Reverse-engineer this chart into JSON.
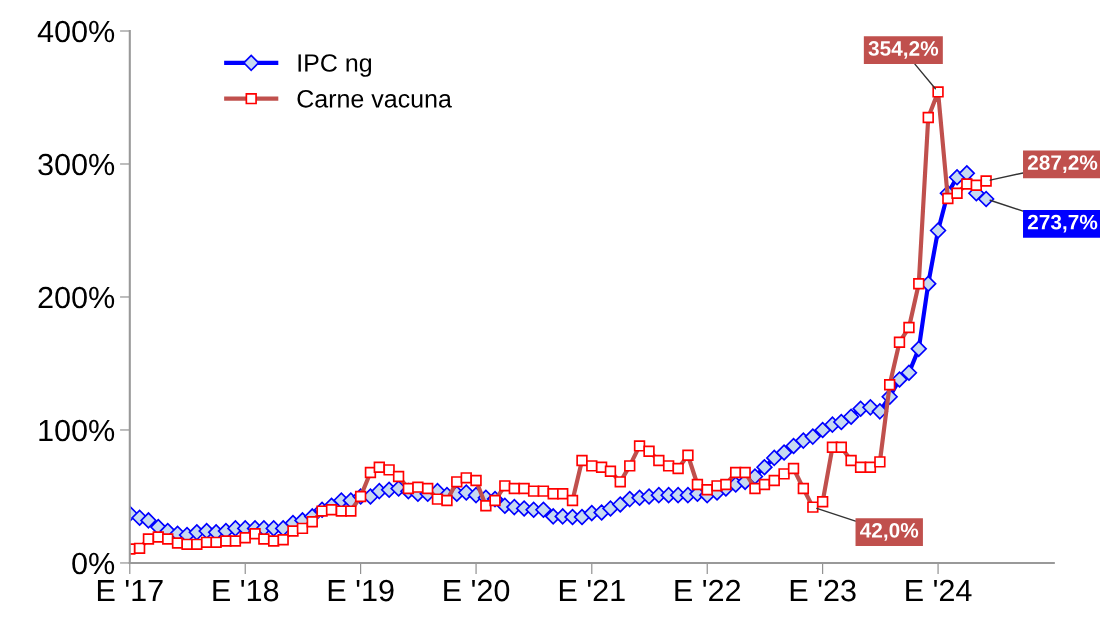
{
  "chart_data": {
    "type": "line",
    "x": [
      "2017-01",
      "2017-02",
      "2017-03",
      "2017-04",
      "2017-05",
      "2017-06",
      "2017-07",
      "2017-08",
      "2017-09",
      "2017-10",
      "2017-11",
      "2017-12",
      "2018-01",
      "2018-02",
      "2018-03",
      "2018-04",
      "2018-05",
      "2018-06",
      "2018-07",
      "2018-08",
      "2018-09",
      "2018-10",
      "2018-11",
      "2018-12",
      "2019-01",
      "2019-02",
      "2019-03",
      "2019-04",
      "2019-05",
      "2019-06",
      "2019-07",
      "2019-08",
      "2019-09",
      "2019-10",
      "2019-11",
      "2019-12",
      "2020-01",
      "2020-02",
      "2020-03",
      "2020-04",
      "2020-05",
      "2020-06",
      "2020-07",
      "2020-08",
      "2020-09",
      "2020-10",
      "2020-11",
      "2020-12",
      "2021-01",
      "2021-02",
      "2021-03",
      "2021-04",
      "2021-05",
      "2021-06",
      "2021-07",
      "2021-08",
      "2021-09",
      "2021-10",
      "2021-11",
      "2021-12",
      "2022-01",
      "2022-02",
      "2022-03",
      "2022-04",
      "2022-05",
      "2022-06",
      "2022-07",
      "2022-08",
      "2022-09",
      "2022-10",
      "2022-11",
      "2022-12",
      "2023-01",
      "2023-02",
      "2023-03",
      "2023-04",
      "2023-05",
      "2023-06",
      "2023-07",
      "2023-08",
      "2023-09",
      "2023-10",
      "2023-11",
      "2023-12",
      "2024-01",
      "2024-02",
      "2024-03",
      "2024-04",
      "2024-05",
      "2024-06"
    ],
    "series": [
      {
        "name": "IPC ng",
        "color": "#0000ff",
        "marker": "diamond",
        "values": [
          37,
          34,
          32,
          27,
          24,
          22,
          21,
          23,
          24,
          23,
          24,
          26,
          26,
          26,
          26,
          26,
          26,
          30,
          32,
          35,
          40,
          43,
          47,
          47,
          50,
          50,
          54,
          55,
          56,
          54,
          52,
          52,
          54,
          51,
          52,
          53,
          51,
          49,
          48,
          43,
          42,
          41,
          40,
          40,
          35,
          35,
          34.5,
          34.5,
          37.5,
          38,
          41,
          44,
          48,
          49,
          50,
          51,
          51,
          51,
          51,
          52,
          51,
          53,
          56,
          59,
          61,
          65,
          72,
          79,
          83,
          88,
          92,
          95,
          100,
          104,
          106,
          110,
          116,
          117,
          114,
          125,
          138,
          143,
          161,
          210,
          250,
          278,
          290,
          293,
          278,
          273.7
        ]
      },
      {
        "name": "Carne vacuna",
        "color": "#c0504d",
        "marker": "square",
        "values": [
          10.5,
          11,
          18,
          19.5,
          18,
          15,
          14,
          14,
          15.5,
          15.5,
          16.5,
          16.5,
          19,
          22,
          18,
          16.5,
          17.5,
          24,
          26,
          31,
          39,
          40,
          39,
          39,
          50,
          68,
          72,
          70,
          65,
          56,
          57,
          56,
          48,
          47,
          61,
          64,
          62,
          43,
          47,
          58,
          56,
          56,
          54,
          54,
          52,
          52,
          47,
          77,
          73,
          72,
          69,
          61,
          73,
          88,
          84,
          77,
          73,
          71,
          81,
          59,
          55,
          58,
          59,
          68,
          68,
          56,
          59,
          62,
          67,
          71,
          56,
          42.0,
          46,
          87,
          87,
          77,
          72,
          72,
          76,
          134,
          166,
          177,
          210,
          335,
          354.2,
          274,
          278,
          285,
          284,
          287.2
        ]
      }
    ],
    "xlim": [
      "2017-01",
      "2025-01"
    ],
    "xticks": [
      {
        "value": "2017-01",
        "label": "E '17"
      },
      {
        "value": "2018-01",
        "label": "E '18"
      },
      {
        "value": "2019-01",
        "label": "E '19"
      },
      {
        "value": "2020-01",
        "label": "E '20"
      },
      {
        "value": "2021-01",
        "label": "E '21"
      },
      {
        "value": "2022-01",
        "label": "E '22"
      },
      {
        "value": "2023-01",
        "label": "E '23"
      },
      {
        "value": "2024-01",
        "label": "E '24"
      }
    ],
    "ylim": [
      0,
      400
    ],
    "yticks": [
      {
        "value": 0,
        "label": "0%"
      },
      {
        "value": 100,
        "label": "100%"
      },
      {
        "value": 200,
        "label": "200%"
      },
      {
        "value": 300,
        "label": "300%"
      },
      {
        "value": 400,
        "label": "400%"
      }
    ],
    "annotations": [
      {
        "text": "354,2%",
        "x": "2024-01",
        "y": 354.2
      },
      {
        "text": "287,2%",
        "x": "2024-06",
        "y": 287.2
      },
      {
        "text": "273,7%",
        "x": "2024-06",
        "y": 273.7
      },
      {
        "text": "42,0%",
        "x": "2022-12",
        "y": 42.0
      }
    ],
    "legend": "top left",
    "grid": false
  }
}
